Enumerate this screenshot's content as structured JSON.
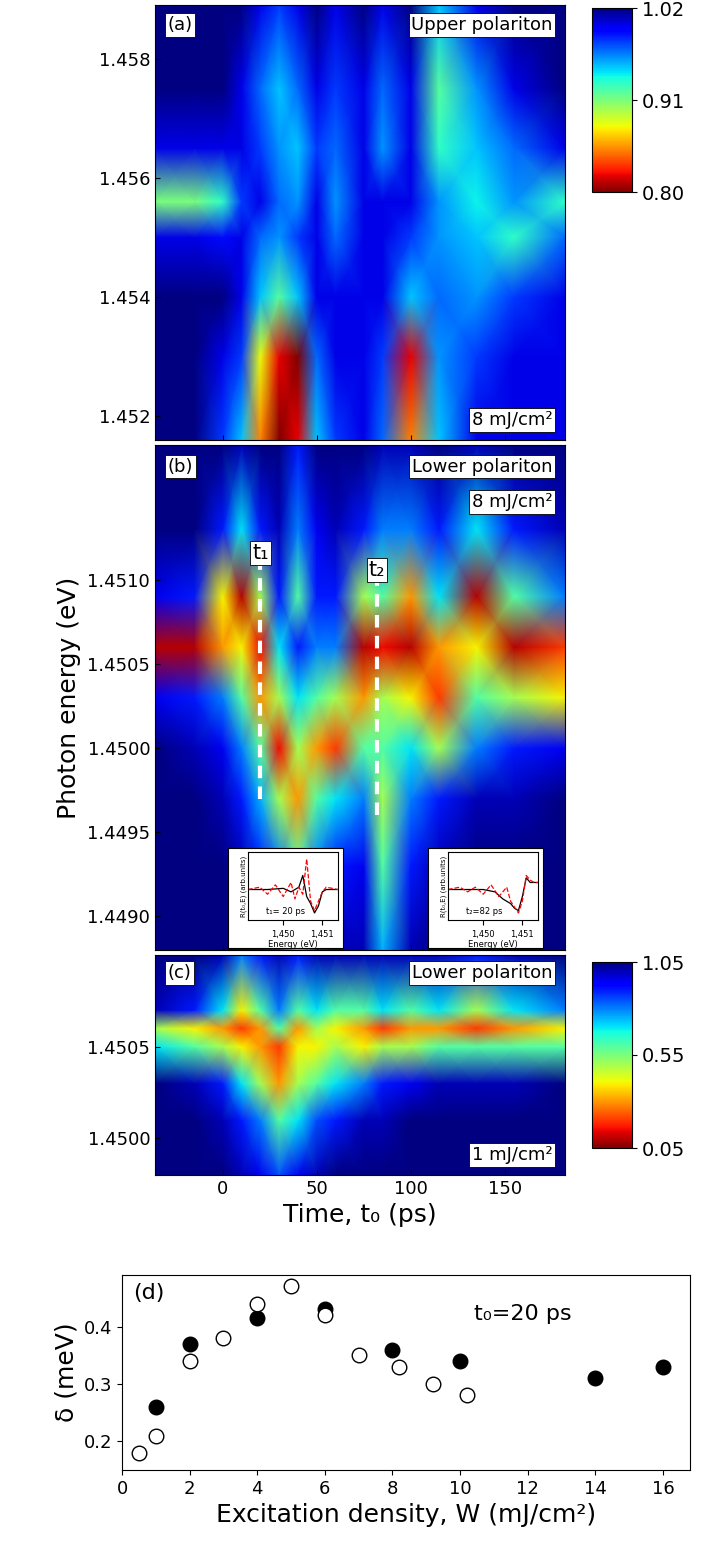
{
  "chart_data": [
    {
      "type": "heatmap",
      "annotations": [
        "(a)",
        "Upper polariton",
        "8 mJ/cm²"
      ],
      "xlim": [
        -36,
        182
      ],
      "xticks": [
        0,
        50,
        100,
        150
      ],
      "ylim": [
        1.4516,
        1.4589
      ],
      "yticks": [
        1.452,
        1.454,
        1.456,
        1.458
      ],
      "tick_labels": "y",
      "clim": [
        0.8,
        1.02
      ],
      "cticks": [
        {
          "value": 0.8,
          "label": "0.80"
        },
        0.91,
        1.02
      ],
      "x": [
        -36,
        -15,
        0,
        10,
        20,
        30,
        40,
        50,
        60,
        75,
        85,
        100,
        115,
        135,
        155,
        182
      ],
      "y": [
        1.4516,
        1.453,
        1.454,
        1.455,
        1.4556,
        1.4565,
        1.4575,
        1.4589
      ],
      "cells": [
        [
          1.02,
          1.02,
          0.98,
          0.95,
          0.85,
          0.8,
          0.82,
          0.95,
          0.98,
          1.0,
          0.97,
          0.85,
          0.95,
          1.0,
          1.0,
          1.0
        ],
        [
          1.02,
          1.02,
          1.0,
          0.98,
          0.88,
          0.82,
          0.8,
          0.97,
          1.0,
          1.0,
          0.98,
          0.82,
          0.96,
          0.98,
          1.0,
          1.0
        ],
        [
          1.02,
          1.02,
          1.02,
          1.0,
          0.95,
          0.92,
          0.95,
          1.0,
          1.0,
          1.0,
          1.0,
          0.95,
          0.97,
          0.96,
          0.98,
          1.0
        ],
        [
          1.0,
          1.0,
          0.99,
          1.0,
          0.97,
          0.96,
          0.98,
          1.0,
          0.97,
          1.0,
          1.0,
          0.98,
          0.96,
          0.95,
          0.93,
          0.97
        ],
        [
          0.91,
          0.91,
          0.93,
          0.98,
          1.0,
          0.97,
          0.96,
          1.0,
          0.96,
          1.0,
          1.0,
          1.0,
          0.96,
          0.94,
          0.96,
          0.93
        ],
        [
          1.0,
          1.0,
          1.0,
          1.0,
          0.98,
          0.96,
          0.95,
          0.98,
          0.97,
          1.0,
          0.96,
          1.0,
          0.93,
          0.95,
          0.97,
          1.0
        ],
        [
          1.02,
          1.02,
          1.02,
          1.0,
          0.97,
          0.95,
          0.97,
          1.0,
          0.98,
          1.0,
          0.97,
          1.0,
          0.92,
          0.96,
          1.0,
          1.02
        ],
        [
          1.02,
          1.02,
          1.02,
          1.02,
          1.0,
          0.98,
          1.0,
          1.02,
          1.0,
          1.02,
          1.0,
          1.02,
          0.95,
          1.0,
          1.02,
          1.02
        ]
      ]
    },
    {
      "type": "heatmap",
      "annotations": [
        "(b)",
        "Lower polariton",
        "8 mJ/cm²"
      ],
      "ylabel": "Photon energy (eV)",
      "xlim": [
        -36,
        182
      ],
      "xticks": [
        0,
        50,
        100,
        150
      ],
      "ylim": [
        1.4488,
        1.4518
      ],
      "yticks": [
        {
          "value": 1.449,
          "label": "1.4490"
        },
        1.4495,
        {
          "value": 1.45,
          "label": "1.4500"
        },
        1.4505,
        {
          "value": 1.451,
          "label": "1.4510"
        }
      ],
      "tick_labels": "y",
      "clim": [
        0.05,
        1.05
      ],
      "markers": [
        {
          "label": "t₁",
          "x": 20,
          "y": [
            1.4497,
            1.4511
          ]
        },
        {
          "label": "t₂",
          "x": 82,
          "y": [
            1.4496,
            1.451
          ]
        }
      ],
      "x": [
        -36,
        -15,
        0,
        10,
        20,
        30,
        40,
        50,
        60,
        75,
        85,
        100,
        115,
        135,
        155,
        182
      ],
      "y": [
        1.4488,
        1.4493,
        1.4497,
        1.45,
        1.4503,
        1.4506,
        1.4509,
        1.4513,
        1.4518
      ],
      "cells": [
        [
          1.05,
          1.05,
          1.05,
          1.05,
          1.0,
          0.9,
          0.7,
          0.9,
          1.0,
          1.0,
          0.75,
          1.0,
          1.05,
          1.05,
          1.05,
          1.05
        ],
        [
          1.05,
          1.05,
          1.05,
          1.0,
          0.9,
          0.8,
          0.6,
          0.8,
          0.9,
          0.95,
          0.6,
          0.9,
          1.0,
          1.05,
          1.05,
          1.05
        ],
        [
          1.05,
          1.05,
          1.0,
          0.9,
          0.75,
          0.5,
          0.3,
          0.6,
          0.7,
          0.8,
          0.5,
          0.8,
          0.9,
          1.0,
          1.0,
          1.05
        ],
        [
          1.05,
          1.0,
          0.95,
          0.8,
          0.6,
          0.15,
          0.5,
          0.3,
          0.2,
          0.6,
          0.6,
          0.7,
          0.5,
          0.8,
          0.9,
          0.95
        ],
        [
          0.95,
          0.9,
          0.8,
          0.6,
          0.3,
          0.5,
          0.7,
          0.6,
          0.5,
          0.3,
          0.5,
          0.4,
          0.2,
          0.6,
          0.5,
          0.4
        ],
        [
          0.1,
          0.1,
          0.3,
          0.4,
          0.15,
          0.7,
          0.9,
          0.8,
          0.8,
          0.1,
          0.15,
          0.1,
          0.3,
          0.4,
          0.1,
          0.2
        ],
        [
          0.95,
          0.9,
          0.4,
          0.1,
          0.5,
          0.9,
          0.6,
          0.9,
          0.9,
          0.5,
          0.6,
          0.3,
          0.7,
          0.1,
          0.6,
          0.8
        ],
        [
          1.05,
          1.05,
          0.9,
          0.7,
          0.9,
          1.0,
          0.8,
          0.95,
          1.0,
          0.9,
          0.8,
          0.8,
          0.9,
          0.7,
          0.9,
          1.0
        ],
        [
          1.05,
          1.05,
          1.05,
          1.0,
          1.05,
          1.05,
          0.9,
          1.05,
          1.05,
          1.05,
          1.0,
          1.0,
          1.05,
          1.0,
          1.05,
          1.05
        ]
      ]
    },
    {
      "type": "heatmap",
      "annotations": [
        "(c)",
        "Lower polariton",
        "1 mJ/cm²"
      ],
      "xlabel": "Time, t₀ (ps)",
      "xlim": [
        -36,
        182
      ],
      "xticks": [
        0,
        50,
        100,
        150
      ],
      "ylim": [
        1.4498,
        1.451
      ],
      "yticks": [
        {
          "value": 1.45,
          "label": "1.4500"
        },
        1.4505
      ],
      "clim": [
        0.05,
        1.05
      ],
      "cticks": [
        0.05,
        0.55,
        1.05
      ],
      "x": [
        -36,
        -15,
        0,
        10,
        20,
        30,
        40,
        50,
        60,
        75,
        85,
        100,
        115,
        135,
        155,
        182
      ],
      "y": [
        1.4498,
        1.4501,
        1.4503,
        1.4505,
        1.4506,
        1.4507,
        1.451
      ],
      "cells": [
        [
          1.05,
          1.05,
          1.05,
          1.0,
          0.95,
          0.85,
          0.95,
          1.0,
          1.05,
          1.05,
          1.05,
          1.05,
          1.05,
          1.05,
          1.05,
          1.05
        ],
        [
          1.05,
          1.05,
          1.0,
          0.9,
          0.8,
          0.6,
          0.7,
          0.85,
          0.9,
          1.0,
          1.0,
          1.05,
          1.05,
          1.05,
          1.05,
          1.05
        ],
        [
          1.05,
          1.0,
          0.9,
          0.7,
          0.5,
          0.3,
          0.5,
          0.6,
          0.7,
          0.8,
          0.9,
          0.95,
          1.0,
          1.0,
          1.0,
          1.05
        ],
        [
          0.7,
          0.6,
          0.5,
          0.4,
          0.3,
          0.2,
          0.4,
          0.4,
          0.5,
          0.4,
          0.5,
          0.5,
          0.6,
          0.6,
          0.6,
          0.6
        ],
        [
          0.5,
          0.4,
          0.3,
          0.2,
          0.3,
          0.6,
          0.3,
          0.5,
          0.4,
          0.3,
          0.2,
          0.3,
          0.3,
          0.2,
          0.3,
          0.4
        ],
        [
          1.0,
          0.9,
          0.7,
          0.4,
          0.6,
          0.8,
          0.6,
          0.7,
          0.6,
          0.6,
          0.7,
          0.6,
          0.7,
          0.5,
          0.7,
          0.8
        ],
        [
          1.05,
          1.05,
          1.0,
          0.8,
          0.9,
          1.0,
          0.9,
          1.0,
          1.0,
          1.0,
          1.0,
          1.0,
          1.0,
          0.9,
          1.0,
          1.05
        ]
      ]
    },
    {
      "type": "scatter",
      "annotations": [
        "(d)",
        "t₀=20 ps"
      ],
      "xlabel": "Excitation density, W (mJ/cm²)",
      "ylabel": "δ (meV)",
      "xlim": [
        0,
        16.8
      ],
      "xticks": [
        0,
        2,
        4,
        6,
        8,
        10,
        12,
        14,
        16
      ],
      "ylim": [
        0.15,
        0.49
      ],
      "yticks": [
        0.2,
        0.3,
        0.4
      ],
      "series": [
        {
          "color": "black",
          "marker": "circle",
          "x": [
            1,
            2,
            4,
            6,
            8,
            10,
            14,
            16
          ],
          "values": [
            0.26,
            0.37,
            0.415,
            0.43,
            0.36,
            0.34,
            0.31,
            0.33
          ]
        },
        {
          "color": "white",
          "marker": "circle",
          "x": [
            0.5,
            1,
            2,
            3,
            4,
            5,
            6,
            7,
            8.2,
            9.2,
            10.2
          ],
          "values": [
            0.18,
            0.21,
            0.34,
            0.38,
            0.44,
            0.47,
            0.42,
            0.35,
            0.33,
            0.3,
            0.28
          ]
        }
      ]
    },
    {
      "type": "line",
      "annotations": [
        "t₁= 20 ps"
      ],
      "xlabel": "Energy (eV)",
      "ylabel": "R(t₀,E) (arb.units)",
      "xlim": [
        1.4491,
        1.4514
      ],
      "xticks": [
        {
          "value": 1.45,
          "label": "1,450"
        },
        {
          "value": 1.451,
          "label": "1,451"
        }
      ],
      "ylim": [
        -1.3,
        1.6
      ],
      "tick_labels": "x",
      "series": [
        {
          "color": "black",
          "line_style": "solid",
          "x": [
            1.4491,
            1.4496,
            1.45,
            1.4502,
            1.4504,
            1.4505,
            1.4506,
            1.4507,
            1.4508,
            1.4509,
            1.451,
            1.4511,
            1.4514
          ],
          "values": [
            0,
            0,
            0.05,
            -0.1,
            0.1,
            0.6,
            -0.3,
            -0.6,
            -1.0,
            -0.7,
            -0.1,
            0,
            0
          ]
        },
        {
          "color": "red",
          "line_style": "dashed",
          "x": [
            1.4491,
            1.4494,
            1.4496,
            1.4498,
            1.45,
            1.4502,
            1.4503,
            1.4504,
            1.4505,
            1.4506,
            1.4507,
            1.4508,
            1.4509,
            1.451,
            1.4511,
            1.4514
          ],
          "values": [
            0,
            0.1,
            -0.2,
            0.2,
            -0.3,
            0.3,
            -0.4,
            0.1,
            -0.2,
            1.3,
            -0.5,
            -0.9,
            -0.5,
            -0.1,
            0.1,
            0
          ]
        }
      ]
    },
    {
      "type": "line",
      "annotations": [
        "t₂=82 ps"
      ],
      "xlabel": "Energy (eV)",
      "ylabel": "R(t₀,E) (arb.units)",
      "xlim": [
        1.4491,
        1.4514
      ],
      "xticks": [
        {
          "value": 1.45,
          "label": "1,450"
        },
        {
          "value": 1.451,
          "label": "1,451"
        }
      ],
      "ylim": [
        -1.3,
        1.6
      ],
      "tick_labels": "x",
      "series": [
        {
          "color": "black",
          "line_style": "solid",
          "x": [
            1.4491,
            1.45,
            1.4503,
            1.4505,
            1.4507,
            1.4508,
            1.4509,
            1.451,
            1.4511,
            1.4512,
            1.4514
          ],
          "values": [
            0,
            0,
            -0.1,
            -0.4,
            -0.6,
            -0.8,
            -0.9,
            -0.3,
            0.5,
            0.3,
            0.3
          ]
        },
        {
          "color": "red",
          "line_style": "dashed",
          "x": [
            1.4491,
            1.4494,
            1.4496,
            1.4498,
            1.45,
            1.4502,
            1.4504,
            1.4506,
            1.4507,
            1.4509,
            1.451,
            1.4511,
            1.4512,
            1.4513,
            1.4514
          ],
          "values": [
            0,
            0.1,
            -0.1,
            0.1,
            -0.2,
            0.2,
            -0.3,
            0.1,
            -0.5,
            -1.0,
            -0.5,
            0.6,
            0.4,
            0.3,
            0.3
          ]
        }
      ]
    }
  ]
}
